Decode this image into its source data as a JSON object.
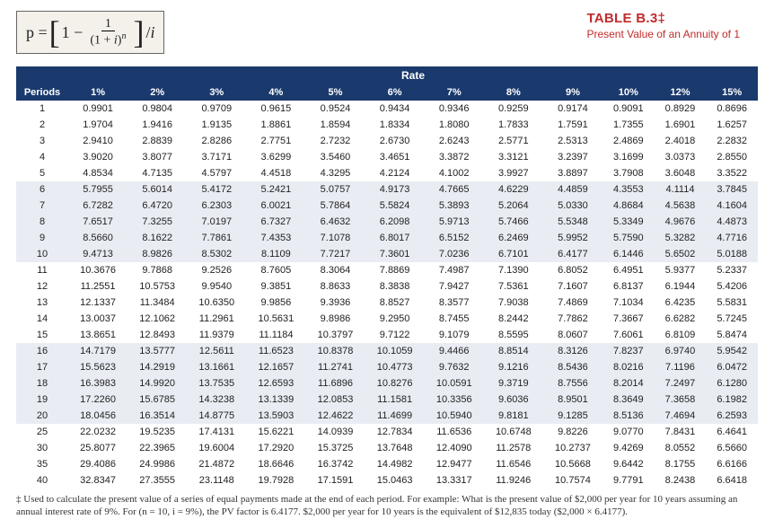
{
  "title": {
    "main": "TABLE B.3‡",
    "sub": "Present Value of an Annuity of 1",
    "title_color": "#c22b2b",
    "title_fontsize": 15,
    "sub_fontsize": 12
  },
  "formula": {
    "lhs": "p =",
    "one_minus": "1 −",
    "frac_num": "1",
    "frac_den": "(1 + i)ⁿ",
    "over_i": "/i",
    "box_bg": "#f4f1eb",
    "box_border": "#666666"
  },
  "table": {
    "type": "table",
    "header_bg": "#1a3a6e",
    "header_color": "#ffffff",
    "stripe_colors": [
      "#ffffff",
      "#e9edf3"
    ],
    "rate_label": "Rate",
    "period_label": "Periods",
    "rate_columns": [
      "1%",
      "2%",
      "3%",
      "4%",
      "5%",
      "6%",
      "7%",
      "8%",
      "9%",
      "10%",
      "12%",
      "15%"
    ],
    "periods": [
      1,
      2,
      3,
      4,
      5,
      6,
      7,
      8,
      9,
      10,
      11,
      12,
      13,
      14,
      15,
      16,
      17,
      18,
      19,
      20,
      25,
      30,
      35,
      40
    ],
    "stripe_pattern": [
      "a",
      "a",
      "a",
      "a",
      "a",
      "b",
      "b",
      "b",
      "b",
      "b",
      "a",
      "a",
      "a",
      "a",
      "a",
      "b",
      "b",
      "b",
      "b",
      "b",
      "a",
      "a",
      "a",
      "a"
    ],
    "rows": [
      [
        "0.9901",
        "0.9804",
        "0.9709",
        "0.9615",
        "0.9524",
        "0.9434",
        "0.9346",
        "0.9259",
        "0.9174",
        "0.9091",
        "0.8929",
        "0.8696"
      ],
      [
        "1.9704",
        "1.9416",
        "1.9135",
        "1.8861",
        "1.8594",
        "1.8334",
        "1.8080",
        "1.7833",
        "1.7591",
        "1.7355",
        "1.6901",
        "1.6257"
      ],
      [
        "2.9410",
        "2.8839",
        "2.8286",
        "2.7751",
        "2.7232",
        "2.6730",
        "2.6243",
        "2.5771",
        "2.5313",
        "2.4869",
        "2.4018",
        "2.2832"
      ],
      [
        "3.9020",
        "3.8077",
        "3.7171",
        "3.6299",
        "3.5460",
        "3.4651",
        "3.3872",
        "3.3121",
        "3.2397",
        "3.1699",
        "3.0373",
        "2.8550"
      ],
      [
        "4.8534",
        "4.7135",
        "4.5797",
        "4.4518",
        "4.3295",
        "4.2124",
        "4.1002",
        "3.9927",
        "3.8897",
        "3.7908",
        "3.6048",
        "3.3522"
      ],
      [
        "5.7955",
        "5.6014",
        "5.4172",
        "5.2421",
        "5.0757",
        "4.9173",
        "4.7665",
        "4.6229",
        "4.4859",
        "4.3553",
        "4.1114",
        "3.7845"
      ],
      [
        "6.7282",
        "6.4720",
        "6.2303",
        "6.0021",
        "5.7864",
        "5.5824",
        "5.3893",
        "5.2064",
        "5.0330",
        "4.8684",
        "4.5638",
        "4.1604"
      ],
      [
        "7.6517",
        "7.3255",
        "7.0197",
        "6.7327",
        "6.4632",
        "6.2098",
        "5.9713",
        "5.7466",
        "5.5348",
        "5.3349",
        "4.9676",
        "4.4873"
      ],
      [
        "8.5660",
        "8.1622",
        "7.7861",
        "7.4353",
        "7.1078",
        "6.8017",
        "6.5152",
        "6.2469",
        "5.9952",
        "5.7590",
        "5.3282",
        "4.7716"
      ],
      [
        "9.4713",
        "8.9826",
        "8.5302",
        "8.1109",
        "7.7217",
        "7.3601",
        "7.0236",
        "6.7101",
        "6.4177",
        "6.1446",
        "5.6502",
        "5.0188"
      ],
      [
        "10.3676",
        "9.7868",
        "9.2526",
        "8.7605",
        "8.3064",
        "7.8869",
        "7.4987",
        "7.1390",
        "6.8052",
        "6.4951",
        "5.9377",
        "5.2337"
      ],
      [
        "11.2551",
        "10.5753",
        "9.9540",
        "9.3851",
        "8.8633",
        "8.3838",
        "7.9427",
        "7.5361",
        "7.1607",
        "6.8137",
        "6.1944",
        "5.4206"
      ],
      [
        "12.1337",
        "11.3484",
        "10.6350",
        "9.9856",
        "9.3936",
        "8.8527",
        "8.3577",
        "7.9038",
        "7.4869",
        "7.1034",
        "6.4235",
        "5.5831"
      ],
      [
        "13.0037",
        "12.1062",
        "11.2961",
        "10.5631",
        "9.8986",
        "9.2950",
        "8.7455",
        "8.2442",
        "7.7862",
        "7.3667",
        "6.6282",
        "5.7245"
      ],
      [
        "13.8651",
        "12.8493",
        "11.9379",
        "11.1184",
        "10.3797",
        "9.7122",
        "9.1079",
        "8.5595",
        "8.0607",
        "7.6061",
        "6.8109",
        "5.8474"
      ],
      [
        "14.7179",
        "13.5777",
        "12.5611",
        "11.6523",
        "10.8378",
        "10.1059",
        "9.4466",
        "8.8514",
        "8.3126",
        "7.8237",
        "6.9740",
        "5.9542"
      ],
      [
        "15.5623",
        "14.2919",
        "13.1661",
        "12.1657",
        "11.2741",
        "10.4773",
        "9.7632",
        "9.1216",
        "8.5436",
        "8.0216",
        "7.1196",
        "6.0472"
      ],
      [
        "16.3983",
        "14.9920",
        "13.7535",
        "12.6593",
        "11.6896",
        "10.8276",
        "10.0591",
        "9.3719",
        "8.7556",
        "8.2014",
        "7.2497",
        "6.1280"
      ],
      [
        "17.2260",
        "15.6785",
        "14.3238",
        "13.1339",
        "12.0853",
        "11.1581",
        "10.3356",
        "9.6036",
        "8.9501",
        "8.3649",
        "7.3658",
        "6.1982"
      ],
      [
        "18.0456",
        "16.3514",
        "14.8775",
        "13.5903",
        "12.4622",
        "11.4699",
        "10.5940",
        "9.8181",
        "9.1285",
        "8.5136",
        "7.4694",
        "6.2593"
      ],
      [
        "22.0232",
        "19.5235",
        "17.4131",
        "15.6221",
        "14.0939",
        "12.7834",
        "11.6536",
        "10.6748",
        "9.8226",
        "9.0770",
        "7.8431",
        "6.4641"
      ],
      [
        "25.8077",
        "22.3965",
        "19.6004",
        "17.2920",
        "15.3725",
        "13.7648",
        "12.4090",
        "11.2578",
        "10.2737",
        "9.4269",
        "8.0552",
        "6.5660"
      ],
      [
        "29.4086",
        "24.9986",
        "21.4872",
        "18.6646",
        "16.3742",
        "14.4982",
        "12.9477",
        "11.6546",
        "10.5668",
        "9.6442",
        "8.1755",
        "6.6166"
      ],
      [
        "32.8347",
        "27.3555",
        "23.1148",
        "19.7928",
        "17.1591",
        "15.0463",
        "13.3317",
        "11.9246",
        "10.7574",
        "9.7791",
        "8.2438",
        "6.6418"
      ]
    ],
    "fontsize": 11
  },
  "footnote": {
    "text": "‡ Used to calculate the present value of a series of equal payments made at the end of each period. For example: What is the present value of $2,000 per year for 10 years assuming an annual interest rate of 9%. For (n = 10, i = 9%), the PV factor is 6.4177. $2,000 per year for 10 years is the equivalent of $12,835 today ($2,000 × 6.4177).",
    "fontsize": 11,
    "color": "#333333"
  }
}
